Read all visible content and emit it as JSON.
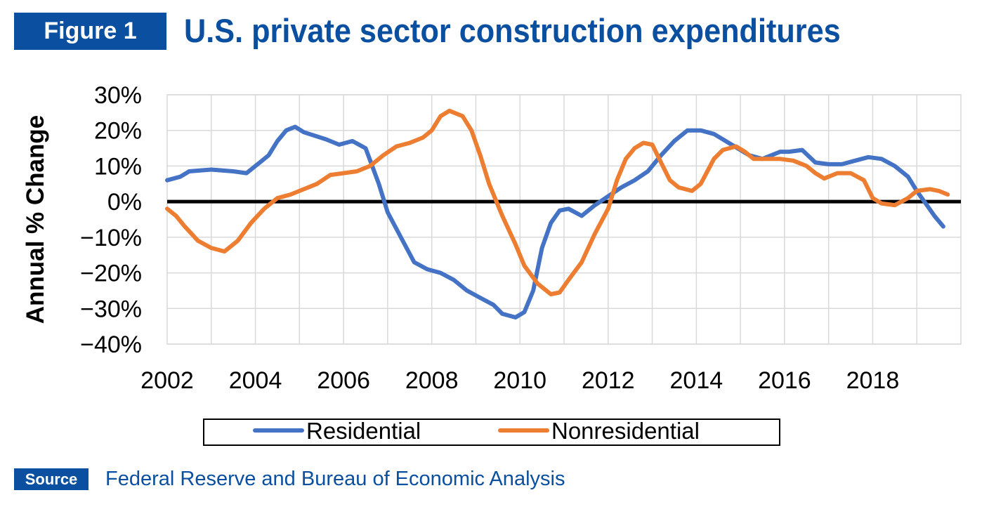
{
  "header": {
    "badge": "Figure 1",
    "title": "U.S. private sector construction expenditures"
  },
  "source": {
    "badge": "Source",
    "text": "Federal Reserve and Bureau of Economic Analysis"
  },
  "colors": {
    "brand": "#0b4fa0",
    "residential": "#4472c4",
    "nonresidential": "#ed7d31",
    "zero_line": "#000000",
    "grid": "#d9d9d9"
  },
  "chart_data": {
    "type": "line",
    "title": "",
    "xlabel": "",
    "ylabel": "Annual % Change",
    "xlim": [
      2002,
      2020
    ],
    "ylim": [
      -40,
      30
    ],
    "x_ticks": [
      2002,
      2004,
      2006,
      2008,
      2010,
      2012,
      2014,
      2016,
      2018
    ],
    "y_ticks": [
      30,
      20,
      10,
      0,
      -10,
      -20,
      -30,
      -40
    ],
    "y_tick_labels": [
      "30%",
      "20%",
      "10%",
      "0%",
      "−10%",
      "−20%",
      "−30%",
      "−40%"
    ],
    "grid": true,
    "legend": "bottom",
    "series": [
      {
        "name": "Residential",
        "color": "#4472c4",
        "points": [
          [
            2002.0,
            6
          ],
          [
            2002.3,
            7
          ],
          [
            2002.5,
            8.5
          ],
          [
            2003.0,
            9
          ],
          [
            2003.5,
            8.5
          ],
          [
            2003.8,
            8
          ],
          [
            2004.1,
            11
          ],
          [
            2004.3,
            13
          ],
          [
            2004.5,
            17
          ],
          [
            2004.7,
            20
          ],
          [
            2004.9,
            21
          ],
          [
            2005.1,
            19.5
          ],
          [
            2005.6,
            17.5
          ],
          [
            2005.9,
            16
          ],
          [
            2006.2,
            17
          ],
          [
            2006.5,
            15
          ],
          [
            2006.8,
            5
          ],
          [
            2007.0,
            -3
          ],
          [
            2007.3,
            -10
          ],
          [
            2007.6,
            -17
          ],
          [
            2007.9,
            -19
          ],
          [
            2008.2,
            -20
          ],
          [
            2008.5,
            -22
          ],
          [
            2008.8,
            -25
          ],
          [
            2009.1,
            -27
          ],
          [
            2009.4,
            -29
          ],
          [
            2009.6,
            -31.5
          ],
          [
            2009.9,
            -32.5
          ],
          [
            2010.1,
            -31
          ],
          [
            2010.3,
            -25
          ],
          [
            2010.5,
            -13
          ],
          [
            2010.7,
            -6
          ],
          [
            2010.9,
            -2.5
          ],
          [
            2011.1,
            -2
          ],
          [
            2011.4,
            -4
          ],
          [
            2011.7,
            -1
          ],
          [
            2012.0,
            1.5
          ],
          [
            2012.3,
            4
          ],
          [
            2012.6,
            6
          ],
          [
            2012.9,
            8.5
          ],
          [
            2013.2,
            13
          ],
          [
            2013.5,
            17
          ],
          [
            2013.8,
            20
          ],
          [
            2014.1,
            20
          ],
          [
            2014.4,
            19
          ],
          [
            2014.8,
            16
          ],
          [
            2015.2,
            13
          ],
          [
            2015.5,
            12
          ],
          [
            2015.9,
            14
          ],
          [
            2016.1,
            14
          ],
          [
            2016.4,
            14.5
          ],
          [
            2016.7,
            11
          ],
          [
            2017.0,
            10.5
          ],
          [
            2017.3,
            10.5
          ],
          [
            2017.6,
            11.5
          ],
          [
            2017.9,
            12.5
          ],
          [
            2018.2,
            12
          ],
          [
            2018.5,
            10
          ],
          [
            2018.8,
            7
          ],
          [
            2019.0,
            3
          ],
          [
            2019.2,
            -0.5
          ],
          [
            2019.4,
            -4
          ],
          [
            2019.6,
            -7
          ]
        ]
      },
      {
        "name": "Nonresidential",
        "color": "#ed7d31",
        "points": [
          [
            2002.0,
            -2
          ],
          [
            2002.2,
            -4
          ],
          [
            2002.4,
            -7
          ],
          [
            2002.7,
            -11
          ],
          [
            2003.0,
            -13
          ],
          [
            2003.3,
            -14
          ],
          [
            2003.6,
            -11
          ],
          [
            2003.9,
            -6
          ],
          [
            2004.2,
            -2
          ],
          [
            2004.5,
            1
          ],
          [
            2004.8,
            2
          ],
          [
            2005.0,
            3
          ],
          [
            2005.4,
            5
          ],
          [
            2005.7,
            7.5
          ],
          [
            2006.0,
            8
          ],
          [
            2006.3,
            8.5
          ],
          [
            2006.6,
            10
          ],
          [
            2006.9,
            13
          ],
          [
            2007.2,
            15.5
          ],
          [
            2007.5,
            16.5
          ],
          [
            2007.8,
            18
          ],
          [
            2008.0,
            20
          ],
          [
            2008.2,
            24
          ],
          [
            2008.4,
            25.5
          ],
          [
            2008.7,
            24
          ],
          [
            2008.9,
            20
          ],
          [
            2009.1,
            13
          ],
          [
            2009.3,
            5
          ],
          [
            2009.6,
            -4
          ],
          [
            2009.9,
            -12
          ],
          [
            2010.1,
            -18
          ],
          [
            2010.4,
            -23
          ],
          [
            2010.7,
            -26
          ],
          [
            2010.9,
            -25.5
          ],
          [
            2011.1,
            -22
          ],
          [
            2011.4,
            -17
          ],
          [
            2011.7,
            -9
          ],
          [
            2012.0,
            -2
          ],
          [
            2012.2,
            6
          ],
          [
            2012.4,
            12
          ],
          [
            2012.6,
            15
          ],
          [
            2012.8,
            16.5
          ],
          [
            2013.0,
            16
          ],
          [
            2013.2,
            11
          ],
          [
            2013.4,
            6
          ],
          [
            2013.6,
            4
          ],
          [
            2013.9,
            3
          ],
          [
            2014.1,
            5
          ],
          [
            2014.4,
            12
          ],
          [
            2014.6,
            14.5
          ],
          [
            2014.9,
            15.5
          ],
          [
            2015.1,
            14
          ],
          [
            2015.3,
            12
          ],
          [
            2015.6,
            12
          ],
          [
            2015.9,
            12
          ],
          [
            2016.2,
            11.5
          ],
          [
            2016.5,
            10
          ],
          [
            2016.7,
            8
          ],
          [
            2016.9,
            6.5
          ],
          [
            2017.2,
            8
          ],
          [
            2017.5,
            8
          ],
          [
            2017.8,
            6
          ],
          [
            2018.0,
            1
          ],
          [
            2018.2,
            -0.5
          ],
          [
            2018.5,
            -1
          ],
          [
            2018.8,
            1
          ],
          [
            2019.0,
            3
          ],
          [
            2019.3,
            3.5
          ],
          [
            2019.5,
            3
          ],
          [
            2019.7,
            2
          ]
        ]
      }
    ]
  }
}
